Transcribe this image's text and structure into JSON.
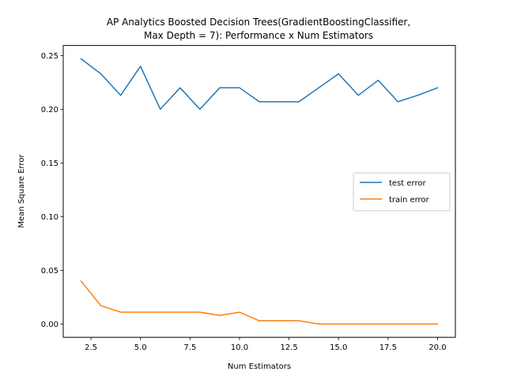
{
  "chart_data": {
    "type": "line",
    "title_line1": "AP Analytics Boosted Decision Trees(GradientBoostingClassifier,",
    "title_line2": "Max Depth = 7): Performance x Num Estimators",
    "xlabel": "Num Estimators",
    "ylabel": "Mean Square Error",
    "xlim": [
      1.1,
      20.9
    ],
    "ylim": [
      -0.0124,
      0.2594
    ],
    "xticks": [
      2.5,
      5.0,
      7.5,
      10.0,
      12.5,
      15.0,
      17.5,
      20.0
    ],
    "xtick_labels": [
      "2.5",
      "5.0",
      "7.5",
      "10.0",
      "12.5",
      "15.0",
      "17.5",
      "20.0"
    ],
    "yticks": [
      0.0,
      0.05,
      0.1,
      0.15,
      0.2,
      0.25
    ],
    "ytick_labels": [
      "0.00",
      "0.05",
      "0.10",
      "0.15",
      "0.20",
      "0.25"
    ],
    "grid": false,
    "legend_position": "center-right",
    "x": [
      2,
      3,
      4,
      5,
      6,
      7,
      8,
      9,
      10,
      11,
      12,
      13,
      14,
      15,
      16,
      17,
      18,
      19,
      20
    ],
    "series": [
      {
        "name": "test error",
        "color": "#1f77b4",
        "values": [
          0.247,
          0.233,
          0.213,
          0.24,
          0.2,
          0.22,
          0.2,
          0.22,
          0.22,
          0.207,
          0.207,
          0.207,
          0.22,
          0.233,
          0.213,
          0.227,
          0.207,
          0.213,
          0.22
        ]
      },
      {
        "name": "train error",
        "color": "#ff7f0e",
        "values": [
          0.04,
          0.017,
          0.011,
          0.011,
          0.011,
          0.011,
          0.011,
          0.008,
          0.011,
          0.003,
          0.003,
          0.003,
          0.0,
          0.0,
          0.0,
          0.0,
          0.0,
          0.0,
          0.0
        ]
      }
    ]
  }
}
